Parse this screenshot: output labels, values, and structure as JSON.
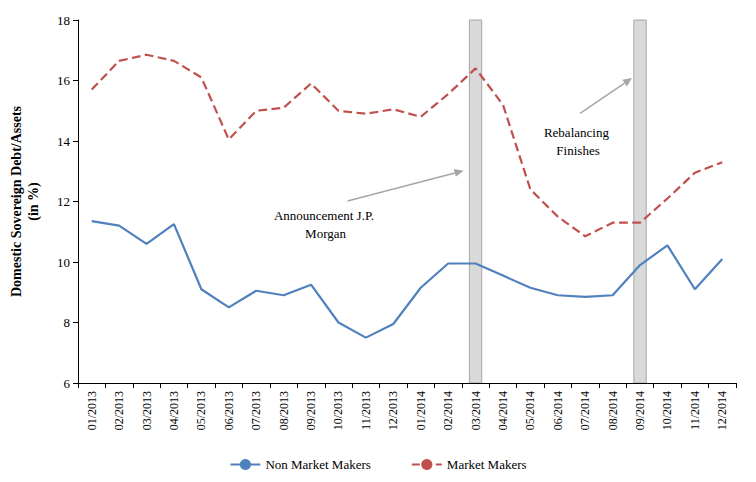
{
  "chart_data": {
    "type": "line",
    "ylabel": "Domestic Sovereign Debt/Assets\n(in %)",
    "categories": [
      "01/2013",
      "02/2013",
      "03/2013",
      "04/2013",
      "05/2013",
      "06/2013",
      "07/2013",
      "08/2013",
      "09/2013",
      "10/2013",
      "11/2013",
      "12/2013",
      "01/2014",
      "02/2014",
      "03/2014",
      "04/2014",
      "05/2014",
      "06/2014",
      "07/2014",
      "08/2014",
      "09/2014",
      "10/2014",
      "11/2014",
      "12/2014"
    ],
    "series": [
      {
        "name": "Non Market Makers",
        "color": "#4f81bd",
        "line_style": "solid",
        "values": [
          11.35,
          11.2,
          10.6,
          11.25,
          9.1,
          8.5,
          9.05,
          8.9,
          9.25,
          8.0,
          7.5,
          7.95,
          9.15,
          9.95,
          9.95,
          9.55,
          9.15,
          8.9,
          8.85,
          8.9,
          9.9,
          10.55,
          9.1,
          10.1
        ]
      },
      {
        "name": "Market Makers",
        "color": "#c0504d",
        "line_style": "dashed",
        "values": [
          15.7,
          16.65,
          16.85,
          16.65,
          16.1,
          14.05,
          15.0,
          15.1,
          15.9,
          15.0,
          14.9,
          15.05,
          14.8,
          15.55,
          16.4,
          15.2,
          12.4,
          11.5,
          10.85,
          11.3,
          11.3,
          12.1,
          12.95,
          13.3
        ]
      }
    ],
    "ylim": [
      6,
      18
    ],
    "yticks": [
      6,
      8,
      10,
      12,
      14,
      16,
      18
    ],
    "grid": false,
    "legend": "bottom",
    "annotations": [
      {
        "text": "Announcement J.P. Morgan",
        "category": "03/2014"
      },
      {
        "text": "Rebalancing Finishes",
        "category": "09/2014"
      }
    ]
  }
}
